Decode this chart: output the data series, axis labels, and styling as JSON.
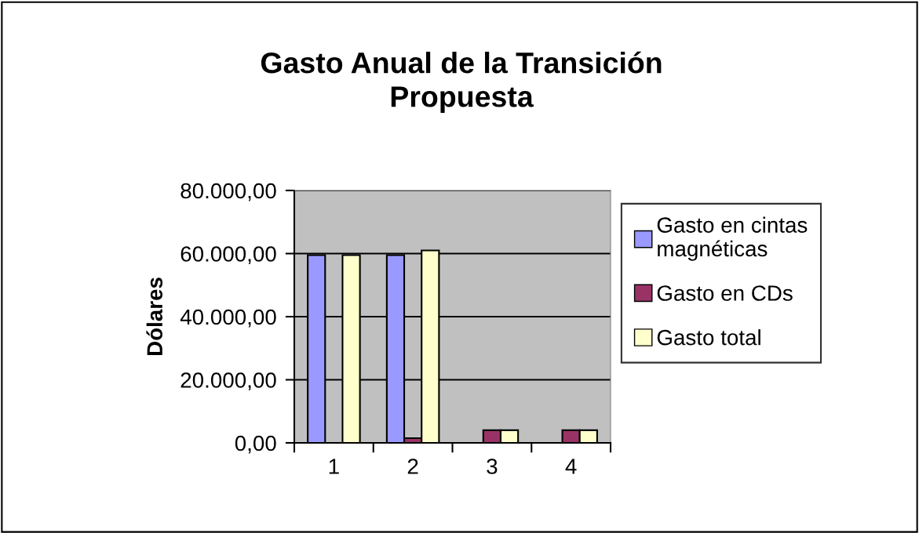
{
  "chart_data": {
    "type": "bar",
    "title": "Gasto Anual de la Transición\nPropuesta",
    "ylabel": "Dólares",
    "categories": [
      "1",
      "2",
      "3",
      "4"
    ],
    "series": [
      {
        "name": "Gasto en cintas\nmagnéticas",
        "color": "#9999ff",
        "values": [
          59500,
          59500,
          null,
          null
        ]
      },
      {
        "name": "Gasto en CDs",
        "color": "#993366",
        "values": [
          null,
          1500,
          4000,
          4000
        ]
      },
      {
        "name": "Gasto total",
        "color": "#ffffcc",
        "values": [
          59500,
          61000,
          4000,
          4000
        ]
      }
    ],
    "ylim": [
      0,
      80000
    ],
    "yticks": [
      {
        "value": 0,
        "label": "0,00"
      },
      {
        "value": 20000,
        "label": "20.000,00"
      },
      {
        "value": 40000,
        "label": "40.000,00"
      },
      {
        "value": 60000,
        "label": "60.000,00"
      },
      {
        "value": 80000,
        "label": "80.000,00"
      }
    ],
    "grid": "y",
    "legend": "right"
  }
}
